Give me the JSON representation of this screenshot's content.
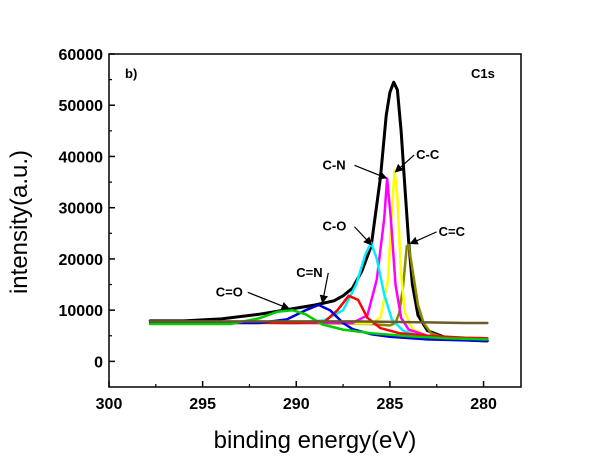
{
  "chart_data": {
    "type": "line",
    "panel_label": "b)",
    "corner_label": "C1s",
    "xlabel": "binding energy(eV)",
    "ylabel": "intensity(a.u.)",
    "x_reversed": true,
    "xlim": [
      300,
      278
    ],
    "ylim": [
      -5000,
      60000
    ],
    "xticks": [
      300,
      295,
      290,
      285,
      280
    ],
    "yticks": [
      0,
      10000,
      20000,
      30000,
      40000,
      50000,
      60000
    ],
    "series": [
      {
        "color": "#000000",
        "points": [
          [
            297.8,
            7900
          ],
          [
            296,
            7900
          ],
          [
            294,
            8300
          ],
          [
            292,
            9200
          ],
          [
            291,
            9800
          ],
          [
            290,
            10400
          ],
          [
            289,
            11000
          ],
          [
            288,
            11800
          ],
          [
            287.5,
            12800
          ],
          [
            287,
            14300
          ],
          [
            286.5,
            17600
          ],
          [
            286,
            22500
          ],
          [
            285.5,
            36000
          ],
          [
            285.2,
            48000
          ],
          [
            285.0,
            52500
          ],
          [
            284.8,
            54500
          ],
          [
            284.6,
            53000
          ],
          [
            284.4,
            45000
          ],
          [
            284.2,
            34000
          ],
          [
            284.0,
            23500
          ],
          [
            283.8,
            15000
          ],
          [
            283.5,
            9000
          ],
          [
            283,
            6000
          ],
          [
            282,
            4600
          ],
          [
            281,
            4200
          ],
          [
            280,
            4000
          ],
          [
            279.8,
            4000
          ]
        ]
      },
      {
        "color": "#888800",
        "points": [
          [
            297.8,
            7700
          ],
          [
            290,
            7500
          ],
          [
            286,
            7300
          ],
          [
            285,
            7000
          ],
          [
            284.7,
            7500
          ],
          [
            284.5,
            9500
          ],
          [
            284.3,
            14500
          ],
          [
            284.1,
            22500
          ],
          [
            284.0,
            22700
          ],
          [
            283.8,
            18000
          ],
          [
            283.5,
            11000
          ],
          [
            283.2,
            7500
          ],
          [
            282.8,
            5500
          ],
          [
            282,
            4500
          ],
          [
            280,
            4200
          ],
          [
            279.8,
            4200
          ]
        ]
      },
      {
        "color": "#ffff00",
        "points": [
          [
            297.8,
            7700
          ],
          [
            290,
            7500
          ],
          [
            286,
            7400
          ],
          [
            285.5,
            8500
          ],
          [
            285.1,
            16000
          ],
          [
            284.9,
            29000
          ],
          [
            284.75,
            37300
          ],
          [
            284.6,
            32000
          ],
          [
            284.4,
            17000
          ],
          [
            284.2,
            9500
          ],
          [
            283.8,
            6300
          ],
          [
            283,
            5000
          ],
          [
            282,
            4500
          ],
          [
            280,
            4300
          ],
          [
            279.8,
            4300
          ]
        ]
      },
      {
        "color": "#ff00ff",
        "points": [
          [
            297.8,
            7700
          ],
          [
            290,
            7500
          ],
          [
            287,
            7500
          ],
          [
            286.2,
            9000
          ],
          [
            285.7,
            16000
          ],
          [
            285.3,
            28000
          ],
          [
            285.15,
            35700
          ],
          [
            284.95,
            28000
          ],
          [
            284.7,
            15000
          ],
          [
            284.4,
            8500
          ],
          [
            284,
            6200
          ],
          [
            283,
            5000
          ],
          [
            281,
            4500
          ],
          [
            279.8,
            4400
          ]
        ]
      },
      {
        "color": "#00eeff",
        "points": [
          [
            297.8,
            7700
          ],
          [
            290,
            7500
          ],
          [
            288.5,
            8000
          ],
          [
            287.5,
            10000
          ],
          [
            286.8,
            15000
          ],
          [
            286.3,
            21000
          ],
          [
            286.0,
            23100
          ],
          [
            285.7,
            20000
          ],
          [
            285.3,
            13000
          ],
          [
            284.9,
            8200
          ],
          [
            284.3,
            6000
          ],
          [
            283.5,
            5000
          ],
          [
            282,
            4600
          ],
          [
            280,
            4400
          ],
          [
            279.8,
            4400
          ]
        ]
      },
      {
        "color": "#ff0000",
        "points": [
          [
            297.8,
            7600
          ],
          [
            290,
            7500
          ],
          [
            288.5,
            7700
          ],
          [
            287.8,
            10000
          ],
          [
            287.2,
            12800
          ],
          [
            286.7,
            12000
          ],
          [
            286.2,
            8500
          ],
          [
            285.5,
            6500
          ],
          [
            284.5,
            5500
          ],
          [
            283,
            5000
          ],
          [
            281,
            4600
          ],
          [
            279.8,
            4500
          ]
        ]
      },
      {
        "color": "#0000dd",
        "points": [
          [
            297.8,
            7500
          ],
          [
            292,
            7500
          ],
          [
            290.5,
            8200
          ],
          [
            289.5,
            10000
          ],
          [
            288.8,
            11000
          ],
          [
            288.2,
            10000
          ],
          [
            287.5,
            7500
          ],
          [
            287,
            6300
          ],
          [
            286,
            5300
          ],
          [
            285,
            4800
          ],
          [
            283,
            4300
          ],
          [
            281,
            4100
          ],
          [
            279.8,
            4000
          ]
        ]
      },
      {
        "color": "#00cc00",
        "points": [
          [
            297.8,
            7300
          ],
          [
            293.5,
            7300
          ],
          [
            292,
            8400
          ],
          [
            291,
            9700
          ],
          [
            290.2,
            10000
          ],
          [
            289.5,
            9200
          ],
          [
            288.6,
            7200
          ],
          [
            287.5,
            6200
          ],
          [
            286,
            5500
          ],
          [
            284,
            4900
          ],
          [
            282,
            4500
          ],
          [
            280,
            4300
          ],
          [
            279.8,
            4300
          ]
        ]
      },
      {
        "color": "#6b5a2a",
        "points": [
          [
            297.8,
            7800
          ],
          [
            294,
            7800
          ],
          [
            290,
            7800
          ],
          [
            287,
            7800
          ],
          [
            285,
            7700
          ],
          [
            283,
            7600
          ],
          [
            281,
            7500
          ],
          [
            279.8,
            7500
          ]
        ]
      }
    ],
    "annotations": [
      {
        "text": "C-N",
        "tx": 288.6,
        "ty": 37500,
        "ax": 285.2,
        "ay": 35800
      },
      {
        "text": "C-C",
        "tx": 283.6,
        "ty": 39500,
        "ax": 284.7,
        "ay": 37000
      },
      {
        "text": "C-O",
        "tx": 288.6,
        "ty": 25500,
        "ax": 286.0,
        "ay": 22800
      },
      {
        "text": "C=C",
        "tx": 282.4,
        "ty": 24500,
        "ax": 283.9,
        "ay": 23000
      },
      {
        "text": "C=N",
        "tx": 290.0,
        "ty": 16500,
        "ax": 288.6,
        "ay": 11500
      },
      {
        "text": "C=O",
        "tx": 294.3,
        "ty": 12700,
        "ax": 290.4,
        "ay": 10300
      }
    ]
  }
}
